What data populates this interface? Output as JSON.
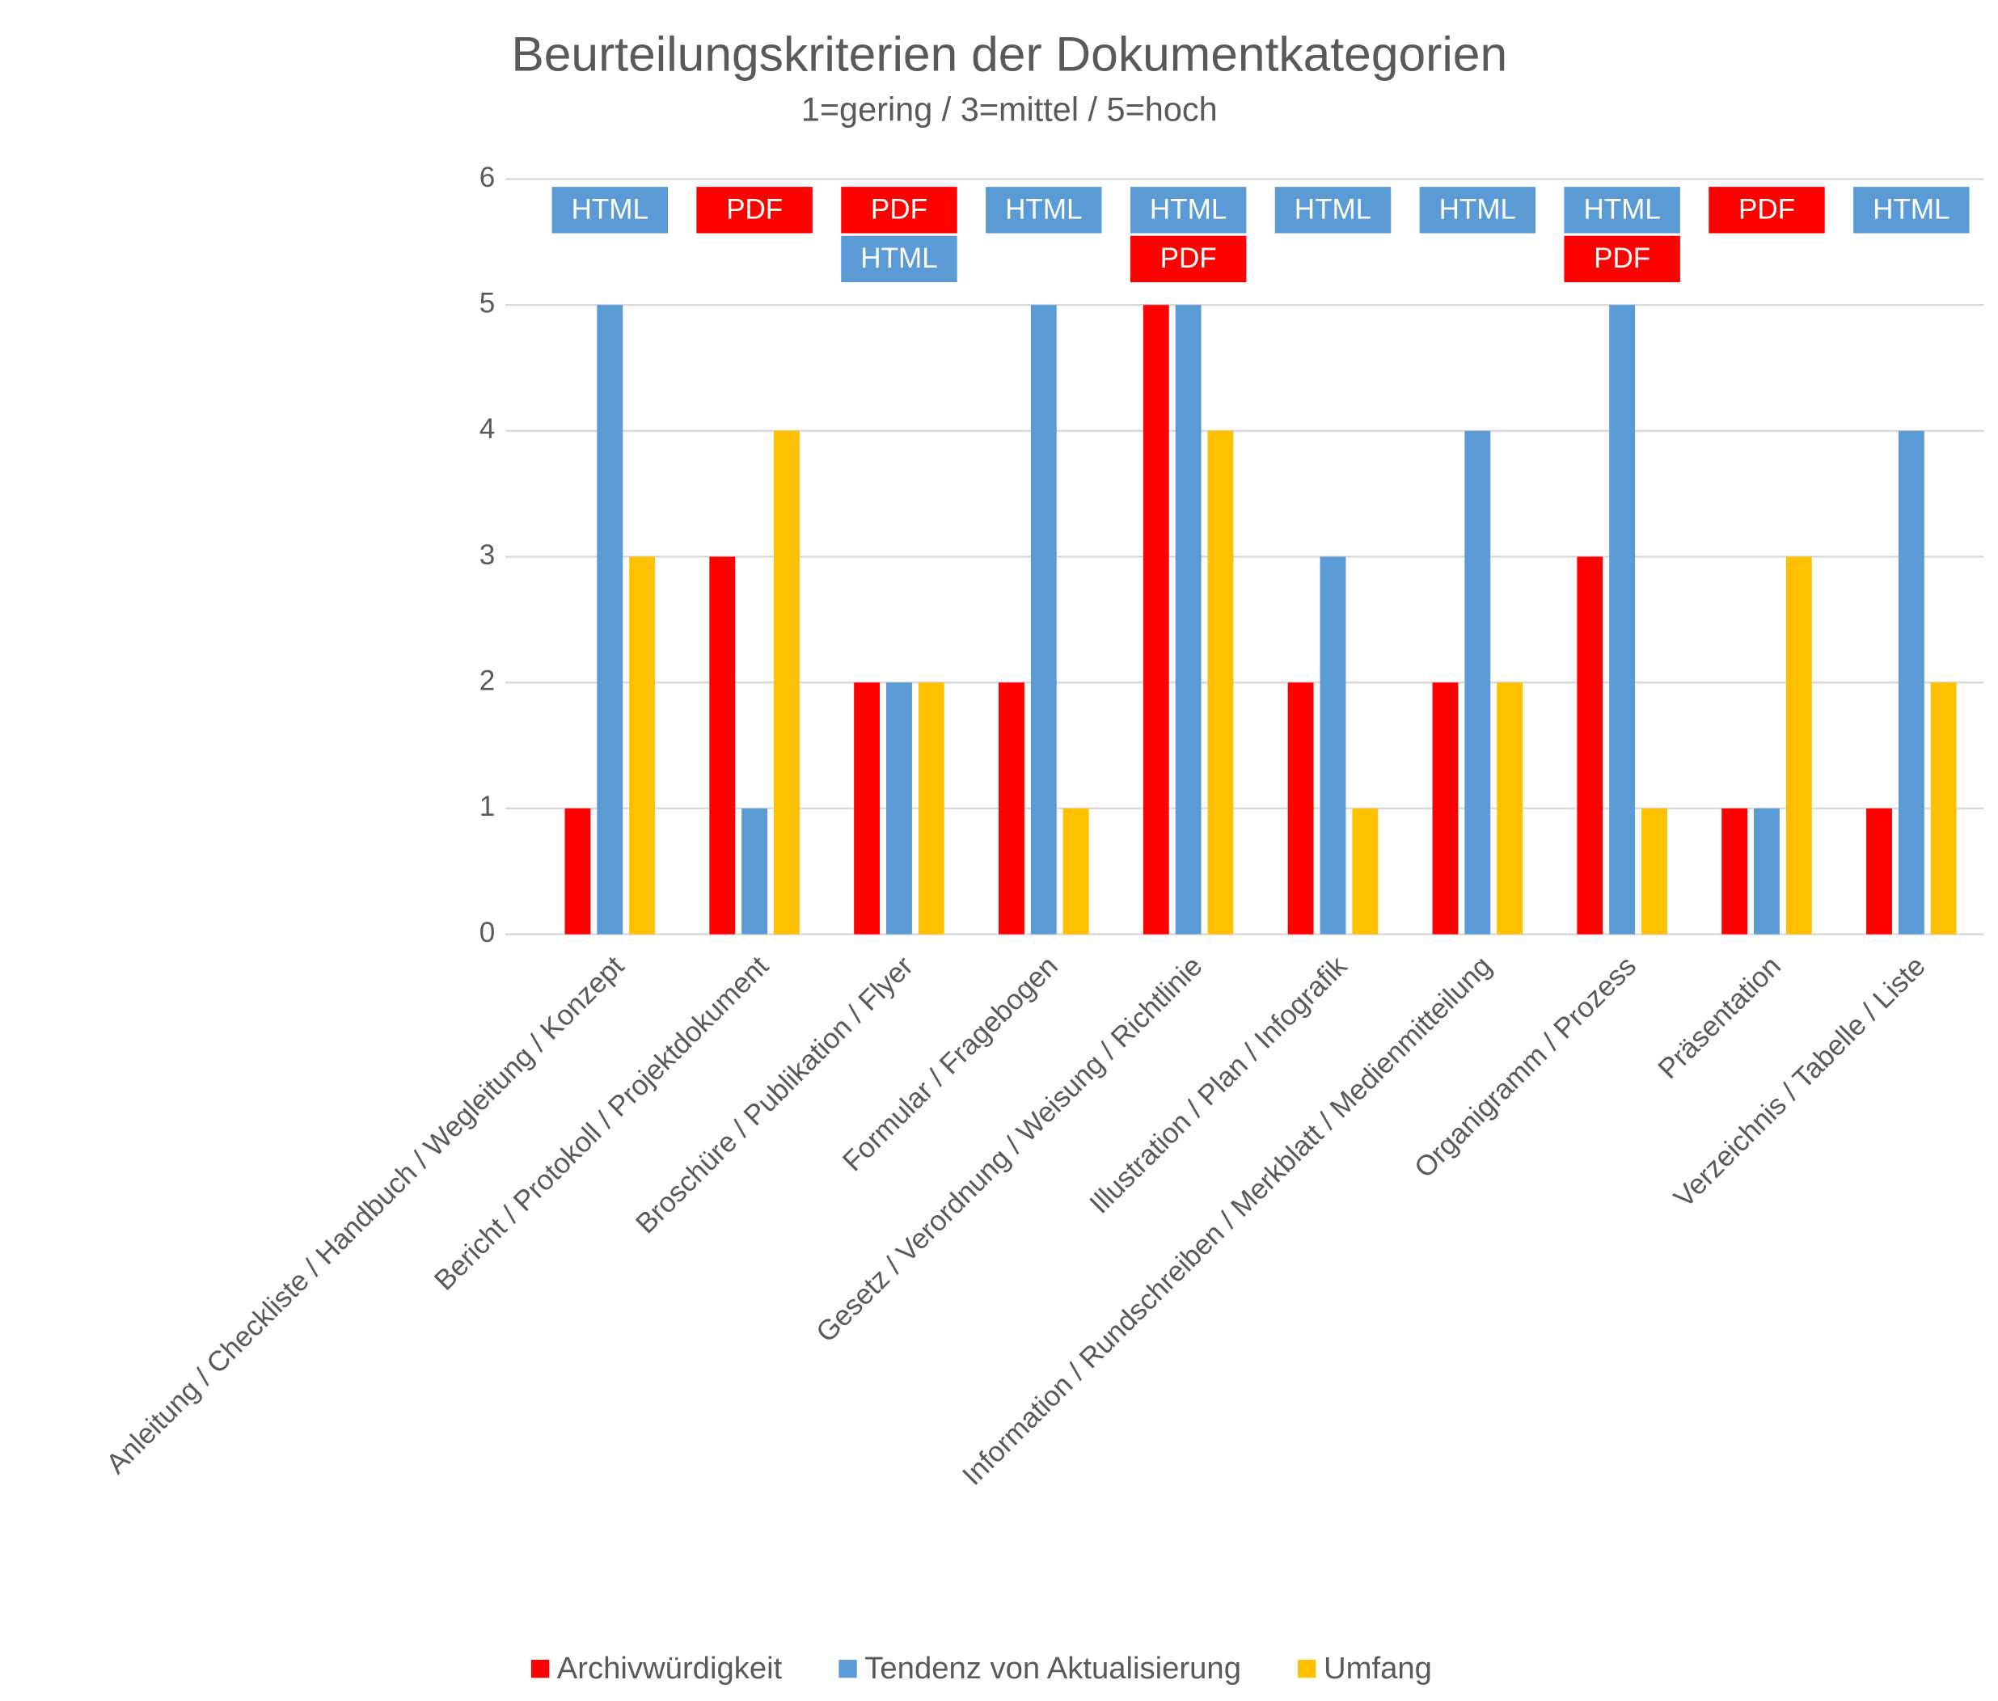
{
  "chart_data": {
    "type": "bar",
    "title": "Beurteilungskriterien der Dokumentkategorien",
    "subtitle": "1=gering / 3=mittel / 5=hoch",
    "categories": [
      "Anleitung / Checkliste / Handbuch / Wegleitung / Konzept",
      "Bericht / Protokoll / Projektdokument",
      "Broschüre / Publikation / Flyer",
      "Formular / Fragebogen",
      "Gesetz / Verordnung / Weisung / Richtlinie",
      "Illustration / Plan / Infografik",
      "Information / Rundschreiben / Merkblatt / Medienmitteilung",
      "Organigramm / Prozess",
      "Präsentation",
      "Verzeichnis / Tabelle / Liste"
    ],
    "series": [
      {
        "name": "Archivwürdigkeit",
        "color": "#ff0000",
        "values": [
          1,
          3,
          2,
          2,
          5,
          2,
          2,
          3,
          1,
          1
        ]
      },
      {
        "name": "Tendenz von Aktualisierung",
        "color": "#5b9bd5",
        "values": [
          5,
          1,
          2,
          5,
          5,
          3,
          4,
          5,
          1,
          4
        ]
      },
      {
        "name": "Umfang",
        "color": "#ffc000",
        "values": [
          3,
          4,
          2,
          1,
          4,
          1,
          2,
          1,
          3,
          2
        ]
      }
    ],
    "annotations": [
      [
        {
          "text": "HTML",
          "color": "#5b9bd5"
        }
      ],
      [
        {
          "text": "PDF",
          "color": "#ff0000"
        }
      ],
      [
        {
          "text": "PDF",
          "color": "#ff0000"
        },
        {
          "text": "HTML",
          "color": "#5b9bd5"
        }
      ],
      [
        {
          "text": "HTML",
          "color": "#5b9bd5"
        }
      ],
      [
        {
          "text": "HTML",
          "color": "#5b9bd5"
        },
        {
          "text": "PDF",
          "color": "#ff0000"
        }
      ],
      [
        {
          "text": "HTML",
          "color": "#5b9bd5"
        }
      ],
      [
        {
          "text": "HTML",
          "color": "#5b9bd5"
        }
      ],
      [
        {
          "text": "HTML",
          "color": "#5b9bd5"
        },
        {
          "text": "PDF",
          "color": "#ff0000"
        }
      ],
      [
        {
          "text": "PDF",
          "color": "#ff0000"
        }
      ],
      [
        {
          "text": "HTML",
          "color": "#5b9bd5"
        }
      ]
    ],
    "ylim": [
      0,
      6
    ],
    "yticks": [
      0,
      1,
      2,
      3,
      4,
      5,
      6
    ],
    "grid": true,
    "legend": "bottom"
  }
}
